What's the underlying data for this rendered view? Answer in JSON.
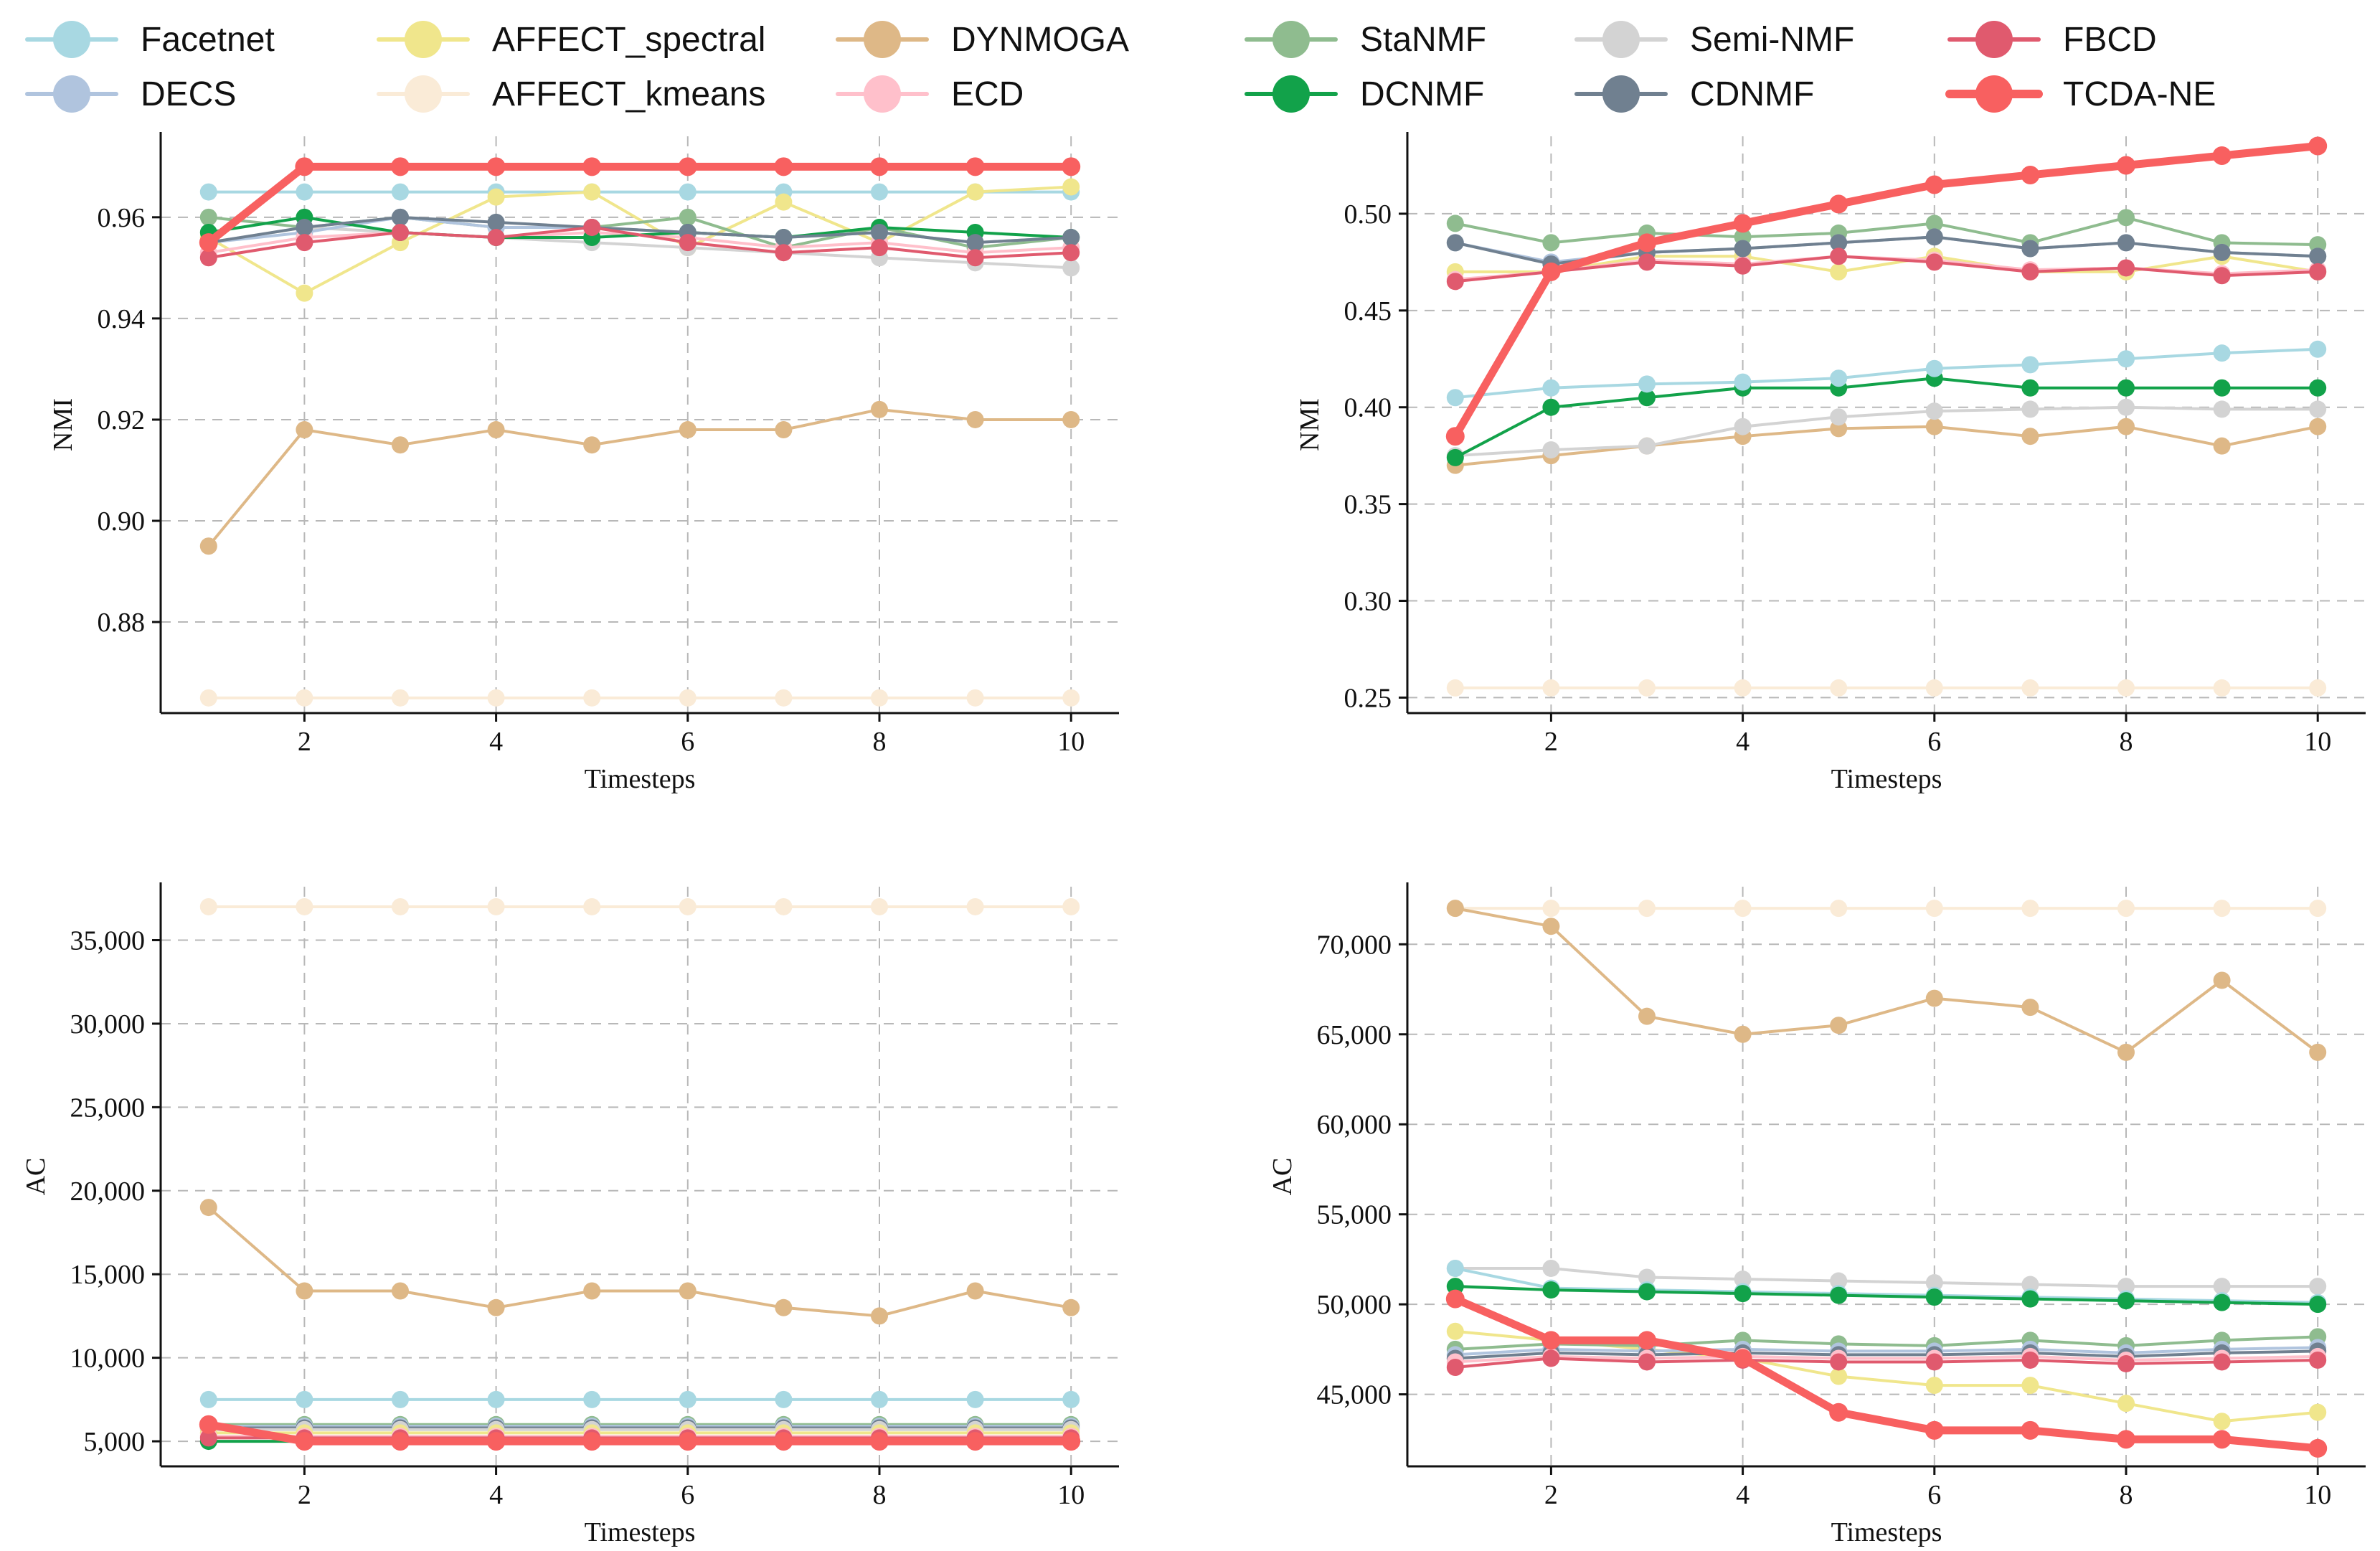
{
  "legend": [
    {
      "name": "Facetnet",
      "color": "#a8d8e2"
    },
    {
      "name": "AFFECT_spectral",
      "color": "#f0e68c"
    },
    {
      "name": "DYNMOGA",
      "color": "#deb887"
    },
    {
      "name": "StaNMF",
      "color": "#8fbc8f"
    },
    {
      "name": "Semi-NMF",
      "color": "#d3d3d3"
    },
    {
      "name": "FBCD",
      "color": "#e05a6e"
    },
    {
      "name": "DECS",
      "color": "#b0c4de"
    },
    {
      "name": "AFFECT_kmeans",
      "color": "#faebd7"
    },
    {
      "name": "ECD",
      "color": "#ffc0cb"
    },
    {
      "name": "DCNMF",
      "color": "#12a24a"
    },
    {
      "name": "CDNMF",
      "color": "#708090"
    },
    {
      "name": "TCDA-NE",
      "color": "#f86060"
    }
  ],
  "chart_data": [
    {
      "type": "line",
      "xlabel": "Timesteps",
      "ylabel": "NMI",
      "x": [
        1,
        2,
        3,
        4,
        5,
        6,
        7,
        8,
        9,
        10
      ],
      "xticks": [
        2,
        4,
        6,
        8,
        10
      ],
      "xlim": [
        0.5,
        10.5
      ],
      "ylim": [
        0.862,
        0.976
      ],
      "yticks": [
        0.88,
        0.9,
        0.92,
        0.94,
        0.96
      ],
      "ytick_labels": [
        "0.88",
        "0.90",
        "0.92",
        "0.94",
        "0.96"
      ],
      "series": [
        {
          "name": "AFFECT_kmeans",
          "values": [
            0.865,
            0.865,
            0.865,
            0.865,
            0.865,
            0.865,
            0.865,
            0.865,
            0.865,
            0.865
          ]
        },
        {
          "name": "DYNMOGA",
          "values": [
            0.895,
            0.918,
            0.915,
            0.918,
            0.915,
            0.918,
            0.918,
            0.922,
            0.92,
            0.92
          ]
        },
        {
          "name": "Facetnet",
          "values": [
            0.965,
            0.965,
            0.965,
            0.965,
            0.965,
            0.965,
            0.965,
            0.965,
            0.965,
            0.965
          ]
        },
        {
          "name": "AFFECT_spectral",
          "values": [
            0.956,
            0.945,
            0.955,
            0.964,
            0.965,
            0.954,
            0.963,
            0.955,
            0.965,
            0.966
          ]
        },
        {
          "name": "StaNMF",
          "values": [
            0.96,
            0.958,
            0.96,
            0.958,
            0.958,
            0.96,
            0.954,
            0.958,
            0.954,
            0.956
          ]
        },
        {
          "name": "Semi-NMF",
          "values": [
            0.955,
            0.958,
            0.957,
            0.956,
            0.955,
            0.954,
            0.953,
            0.952,
            0.951,
            0.95
          ]
        },
        {
          "name": "DECS",
          "values": [
            0.955,
            0.957,
            0.96,
            0.958,
            0.958,
            0.957,
            0.956,
            0.957,
            0.955,
            0.956
          ]
        },
        {
          "name": "ECD",
          "values": [
            0.953,
            0.956,
            0.957,
            0.956,
            0.957,
            0.956,
            0.954,
            0.955,
            0.953,
            0.954
          ]
        },
        {
          "name": "DCNMF",
          "values": [
            0.957,
            0.96,
            0.957,
            0.956,
            0.956,
            0.957,
            0.956,
            0.958,
            0.957,
            0.956
          ]
        },
        {
          "name": "CDNMF",
          "values": [
            0.955,
            0.958,
            0.96,
            0.959,
            0.958,
            0.957,
            0.956,
            0.957,
            0.955,
            0.956
          ]
        },
        {
          "name": "FBCD",
          "values": [
            0.952,
            0.955,
            0.957,
            0.956,
            0.958,
            0.955,
            0.953,
            0.954,
            0.952,
            0.953
          ]
        },
        {
          "name": "TCDA-NE",
          "values": [
            0.955,
            0.97,
            0.97,
            0.97,
            0.97,
            0.97,
            0.97,
            0.97,
            0.97,
            0.97
          ]
        }
      ]
    },
    {
      "type": "line",
      "xlabel": "Timesteps",
      "ylabel": "NMI",
      "x": [
        1,
        2,
        3,
        4,
        5,
        6,
        7,
        8,
        9,
        10
      ],
      "xticks": [
        2,
        4,
        6,
        8,
        10
      ],
      "xlim": [
        0.5,
        10.5
      ],
      "ylim": [
        0.242,
        0.54
      ],
      "yticks": [
        0.25,
        0.3,
        0.35,
        0.4,
        0.45,
        0.5
      ],
      "ytick_labels": [
        "0.25",
        "0.30",
        "0.35",
        "0.40",
        "0.45",
        "0.50"
      ],
      "series": [
        {
          "name": "AFFECT_kmeans",
          "values": [
            0.255,
            0.255,
            0.255,
            0.255,
            0.255,
            0.255,
            0.255,
            0.255,
            0.255,
            0.255
          ]
        },
        {
          "name": "DYNMOGA",
          "values": [
            0.37,
            0.375,
            0.38,
            0.385,
            0.389,
            0.39,
            0.385,
            0.39,
            0.38,
            0.39
          ]
        },
        {
          "name": "Semi-NMF",
          "values": [
            0.375,
            0.378,
            0.38,
            0.39,
            0.395,
            0.398,
            0.399,
            0.4,
            0.399,
            0.399
          ]
        },
        {
          "name": "DCNMF",
          "values": [
            0.374,
            0.4,
            0.405,
            0.41,
            0.41,
            0.415,
            0.41,
            0.41,
            0.41,
            0.41
          ]
        },
        {
          "name": "Facetnet",
          "values": [
            0.405,
            0.41,
            0.412,
            0.413,
            0.415,
            0.42,
            0.422,
            0.425,
            0.428,
            0.43
          ]
        },
        {
          "name": "AFFECT_spectral",
          "values": [
            0.47,
            0.47,
            0.478,
            0.478,
            0.47,
            0.478,
            0.47,
            0.47,
            0.478,
            0.47
          ]
        },
        {
          "name": "StaNMF",
          "values": [
            0.495,
            0.485,
            0.49,
            0.488,
            0.49,
            0.495,
            0.485,
            0.498,
            0.485,
            0.484
          ]
        },
        {
          "name": "DECS",
          "values": [
            0.485,
            0.475,
            0.48,
            0.482,
            0.485,
            0.488,
            0.482,
            0.485,
            0.48,
            0.478
          ]
        },
        {
          "name": "ECD",
          "values": [
            0.466,
            0.47,
            0.476,
            0.474,
            0.478,
            0.476,
            0.471,
            0.472,
            0.469,
            0.471
          ]
        },
        {
          "name": "CDNMF",
          "values": [
            0.485,
            0.474,
            0.48,
            0.482,
            0.485,
            0.488,
            0.482,
            0.485,
            0.48,
            0.478
          ]
        },
        {
          "name": "FBCD",
          "values": [
            0.465,
            0.47,
            0.475,
            0.473,
            0.478,
            0.475,
            0.47,
            0.472,
            0.468,
            0.47
          ]
        },
        {
          "name": "TCDA-NE",
          "values": [
            0.385,
            0.47,
            0.485,
            0.495,
            0.505,
            0.515,
            0.52,
            0.525,
            0.53,
            0.535
          ]
        }
      ]
    },
    {
      "type": "line",
      "xlabel": "Timesteps",
      "ylabel": "AC",
      "x": [
        1,
        2,
        3,
        4,
        5,
        6,
        7,
        8,
        9,
        10
      ],
      "xticks": [
        2,
        4,
        6,
        8,
        10
      ],
      "xlim": [
        0.5,
        10.5
      ],
      "ylim": [
        3500,
        38200
      ],
      "yticks": [
        5000,
        10000,
        15000,
        20000,
        25000,
        30000,
        35000
      ],
      "ytick_labels": [
        "5,000",
        "10,000",
        "15,000",
        "20,000",
        "25,000",
        "30,000",
        "35,000"
      ],
      "series": [
        {
          "name": "AFFECT_kmeans",
          "values": [
            37000,
            37000,
            37000,
            37000,
            37000,
            37000,
            37000,
            37000,
            37000,
            37000
          ]
        },
        {
          "name": "DYNMOGA",
          "values": [
            19000,
            14000,
            14000,
            13000,
            14000,
            14000,
            13000,
            12500,
            14000,
            13000
          ]
        },
        {
          "name": "Facetnet",
          "values": [
            7500,
            7500,
            7500,
            7500,
            7500,
            7500,
            7500,
            7500,
            7500,
            7500
          ]
        },
        {
          "name": "StaNMF",
          "values": [
            6000,
            6000,
            6000,
            6000,
            6000,
            6000,
            6000,
            6000,
            6000,
            6000
          ]
        },
        {
          "name": "DECS",
          "values": [
            5900,
            5900,
            5900,
            5900,
            5900,
            5900,
            5900,
            5900,
            5900,
            5900
          ]
        },
        {
          "name": "CDNMF",
          "values": [
            5800,
            5800,
            5800,
            5800,
            5800,
            5800,
            5800,
            5800,
            5800,
            5800
          ]
        },
        {
          "name": "Semi-NMF",
          "values": [
            5700,
            5700,
            5700,
            5700,
            5700,
            5700,
            5700,
            5700,
            5700,
            5700
          ]
        },
        {
          "name": "AFFECT_spectral",
          "values": [
            5500,
            5500,
            5500,
            5500,
            5500,
            5500,
            5500,
            5500,
            5500,
            5500
          ]
        },
        {
          "name": "DCNMF",
          "values": [
            5000,
            5000,
            5000,
            5000,
            5000,
            5000,
            5000,
            5000,
            5000,
            5000
          ]
        },
        {
          "name": "ECD",
          "values": [
            5300,
            5300,
            5300,
            5300,
            5300,
            5300,
            5300,
            5300,
            5300,
            5300
          ]
        },
        {
          "name": "FBCD",
          "values": [
            5200,
            5200,
            5200,
            5200,
            5200,
            5200,
            5200,
            5200,
            5200,
            5200
          ]
        },
        {
          "name": "TCDA-NE",
          "values": [
            6000,
            5000,
            5000,
            5000,
            5000,
            5000,
            5000,
            5000,
            5000,
            5000
          ]
        }
      ]
    },
    {
      "type": "line",
      "xlabel": "Timesteps",
      "ylabel": "AC",
      "x": [
        1,
        2,
        3,
        4,
        5,
        6,
        7,
        8,
        9,
        10
      ],
      "xticks": [
        2,
        4,
        6,
        8,
        10
      ],
      "xlim": [
        0.5,
        10.5
      ],
      "ylim": [
        41000,
        73200
      ],
      "yticks": [
        45000,
        50000,
        55000,
        60000,
        65000,
        70000
      ],
      "ytick_labels": [
        "45,000",
        "50,000",
        "55,000",
        "60,000",
        "65,000",
        "70,000"
      ],
      "series": [
        {
          "name": "AFFECT_kmeans",
          "values": [
            72000,
            72000,
            72000,
            72000,
            72000,
            72000,
            72000,
            72000,
            72000,
            72000
          ]
        },
        {
          "name": "DYNMOGA",
          "values": [
            72000,
            71000,
            66000,
            65000,
            65500,
            67000,
            66500,
            64000,
            68000,
            64000
          ]
        },
        {
          "name": "Semi-NMF",
          "values": [
            52000,
            52000,
            51500,
            51400,
            51300,
            51200,
            51100,
            51000,
            51000,
            51000
          ]
        },
        {
          "name": "Facetnet",
          "values": [
            52000,
            50900,
            50800,
            50700,
            50600,
            50500,
            50400,
            50300,
            50200,
            50100
          ]
        },
        {
          "name": "DCNMF",
          "values": [
            51000,
            50800,
            50700,
            50600,
            50500,
            50400,
            50300,
            50200,
            50100,
            50000
          ]
        },
        {
          "name": "AFFECT_spectral",
          "values": [
            48500,
            48000,
            47500,
            47000,
            46000,
            45500,
            45500,
            44500,
            43500,
            44000
          ]
        },
        {
          "name": "StaNMF",
          "values": [
            47500,
            47800,
            47700,
            48000,
            47800,
            47700,
            48000,
            47700,
            48000,
            48200
          ]
        },
        {
          "name": "DECS",
          "values": [
            47200,
            47500,
            47400,
            47500,
            47400,
            47400,
            47500,
            47300,
            47500,
            47600
          ]
        },
        {
          "name": "CDNMF",
          "values": [
            47000,
            47300,
            47200,
            47300,
            47200,
            47200,
            47300,
            47100,
            47300,
            47400
          ]
        },
        {
          "name": "ECD",
          "values": [
            46800,
            47100,
            47000,
            47100,
            47000,
            47000,
            47100,
            46900,
            47000,
            47100
          ]
        },
        {
          "name": "FBCD",
          "values": [
            46500,
            47000,
            46800,
            46900,
            46800,
            46800,
            46900,
            46700,
            46800,
            46900
          ]
        },
        {
          "name": "TCDA-NE",
          "values": [
            50300,
            48000,
            48000,
            47000,
            44000,
            43000,
            43000,
            42500,
            42500,
            42000
          ]
        }
      ]
    }
  ]
}
